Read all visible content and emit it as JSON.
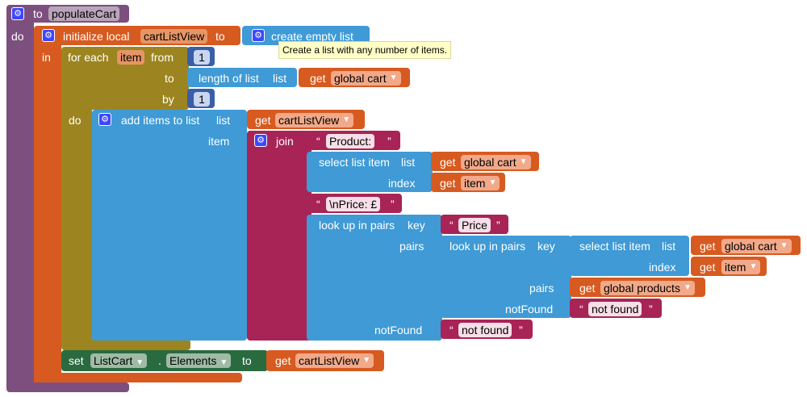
{
  "procedure": {
    "kw_to": "to",
    "name": "populateCart",
    "kw_do": "do"
  },
  "init_local": {
    "label": "initialize local",
    "var": "cartListView",
    "kw_to": "to",
    "kw_in": "in"
  },
  "create_empty": {
    "label": "create empty list",
    "tooltip": "Create a list with any number of items."
  },
  "for_each": {
    "label": "for each",
    "var": "item",
    "kw_from": "from",
    "from_val": "1",
    "kw_to": "to",
    "kw_by": "by",
    "by_val": "1",
    "kw_do": "do"
  },
  "length_of": {
    "label": "length of list",
    "kw_list": "list",
    "get": "get",
    "global": "global cart"
  },
  "add_items": {
    "label": "add items to list",
    "kw_list": "list",
    "kw_item": "item",
    "get": "get",
    "var": "cartListView"
  },
  "join": {
    "label": "join"
  },
  "str_product": "Product: ",
  "select1": {
    "label": "select list item",
    "kw_list": "list",
    "kw_index": "index",
    "get": "get",
    "global": "global cart",
    "index_var": "item"
  },
  "str_price_nl": "\\nPrice: £",
  "lookup_outer": {
    "label": "look up in pairs",
    "kw_key": "key",
    "key": "Price",
    "kw_pairs": "pairs",
    "kw_notfound": "notFound",
    "notfound": "not found"
  },
  "lookup_inner": {
    "label": "look up in pairs",
    "kw_key": "key",
    "kw_pairs": "pairs",
    "kw_notfound": "notFound",
    "notfound": "not found"
  },
  "select2": {
    "label": "select list item",
    "kw_list": "list",
    "kw_index": "index",
    "get": "get",
    "global": "global cart",
    "index_var": "item"
  },
  "get_products": {
    "get": "get",
    "global": "global products"
  },
  "set_block": {
    "kw_set": "set",
    "component": "ListCart",
    "dot": ".",
    "property": "Elements",
    "kw_to": "to",
    "get": "get",
    "var": "cartListView"
  }
}
